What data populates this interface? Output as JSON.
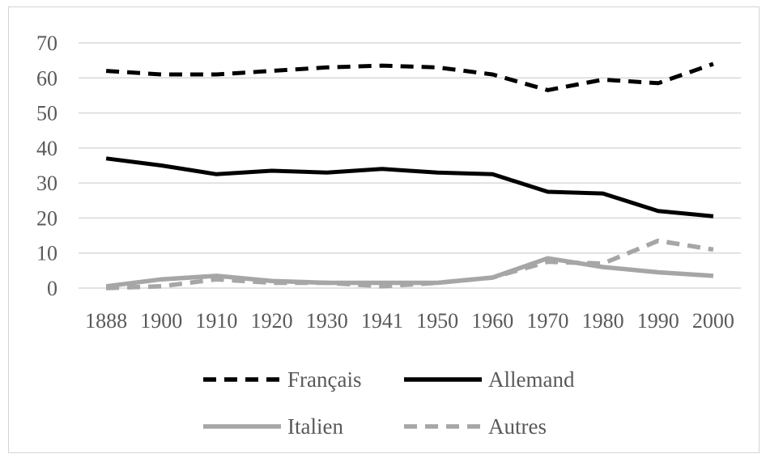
{
  "chart_data": {
    "type": "line",
    "title": "",
    "xlabel": "",
    "ylabel": "",
    "categories": [
      "1888",
      "1900",
      "1910",
      "1920",
      "1930",
      "1941",
      "1950",
      "1960",
      "1970",
      "1980",
      "1990",
      "2000"
    ],
    "ylim": [
      0,
      70
    ],
    "yticks": [
      0,
      10,
      20,
      30,
      40,
      50,
      60,
      70
    ],
    "grid": true,
    "legend_position": "bottom",
    "series": [
      {
        "name": "Français",
        "values": [
          62.0,
          61.0,
          61.0,
          62.0,
          63.0,
          63.5,
          63.0,
          61.0,
          56.5,
          59.5,
          58.5,
          64.0
        ],
        "color": "#000000",
        "dash": "dashed"
      },
      {
        "name": "Allemand",
        "values": [
          37.0,
          35.0,
          32.5,
          33.5,
          33.0,
          34.0,
          33.0,
          32.5,
          27.5,
          27.0,
          22.0,
          20.5
        ],
        "color": "#000000",
        "dash": "solid"
      },
      {
        "name": "Italien",
        "values": [
          0.5,
          2.5,
          3.5,
          2.0,
          1.5,
          1.5,
          1.5,
          3.0,
          8.5,
          6.0,
          4.5,
          3.5
        ],
        "color": "#a6a6a6",
        "dash": "solid"
      },
      {
        "name": "Autres",
        "values": [
          0.0,
          0.5,
          2.5,
          1.5,
          1.5,
          0.5,
          1.5,
          3.0,
          7.5,
          7.0,
          13.5,
          11.0
        ],
        "color": "#a6a6a6",
        "dash": "dashed"
      }
    ]
  }
}
